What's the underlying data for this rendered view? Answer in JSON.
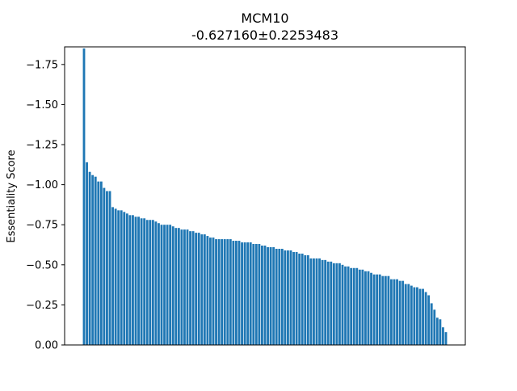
{
  "chart_data": {
    "type": "bar",
    "title": "MCM10",
    "subtitle": "-0.627160±0.2253483",
    "xlabel": "",
    "ylabel": "Essentiality Score",
    "ylim": [
      0,
      -1.86
    ],
    "y_axis_inverted": true,
    "yticks": [
      0,
      -0.25,
      -0.5,
      -0.75,
      -1.0,
      -1.25,
      -1.5,
      -1.75
    ],
    "ytick_labels": [
      "0.00",
      "−0.25",
      "−0.50",
      "−0.75",
      "−1.00",
      "−1.25",
      "−1.50",
      "−1.75"
    ],
    "grid": false,
    "bar_color": "#1f77b4",
    "values": [
      -1.85,
      -1.14,
      -1.08,
      -1.06,
      -1.05,
      -1.02,
      -1.02,
      -0.98,
      -0.96,
      -0.96,
      -0.86,
      -0.85,
      -0.84,
      -0.84,
      -0.83,
      -0.82,
      -0.81,
      -0.81,
      -0.8,
      -0.8,
      -0.79,
      -0.79,
      -0.78,
      -0.78,
      -0.78,
      -0.77,
      -0.76,
      -0.75,
      -0.75,
      -0.75,
      -0.75,
      -0.74,
      -0.73,
      -0.73,
      -0.72,
      -0.72,
      -0.72,
      -0.71,
      -0.71,
      -0.7,
      -0.7,
      -0.69,
      -0.69,
      -0.68,
      -0.67,
      -0.67,
      -0.66,
      -0.66,
      -0.66,
      -0.66,
      -0.66,
      -0.66,
      -0.65,
      -0.65,
      -0.65,
      -0.64,
      -0.64,
      -0.64,
      -0.64,
      -0.63,
      -0.63,
      -0.63,
      -0.62,
      -0.62,
      -0.61,
      -0.61,
      -0.61,
      -0.6,
      -0.6,
      -0.6,
      -0.59,
      -0.59,
      -0.59,
      -0.58,
      -0.58,
      -0.57,
      -0.57,
      -0.56,
      -0.56,
      -0.54,
      -0.54,
      -0.54,
      -0.54,
      -0.53,
      -0.53,
      -0.52,
      -0.52,
      -0.51,
      -0.51,
      -0.51,
      -0.5,
      -0.49,
      -0.49,
      -0.48,
      -0.48,
      -0.48,
      -0.47,
      -0.47,
      -0.46,
      -0.46,
      -0.45,
      -0.44,
      -0.44,
      -0.44,
      -0.43,
      -0.43,
      -0.43,
      -0.41,
      -0.41,
      -0.41,
      -0.4,
      -0.4,
      -0.38,
      -0.38,
      -0.37,
      -0.36,
      -0.36,
      -0.35,
      -0.35,
      -0.33,
      -0.31,
      -0.26,
      -0.22,
      -0.17,
      -0.16,
      -0.11,
      -0.08
    ]
  }
}
